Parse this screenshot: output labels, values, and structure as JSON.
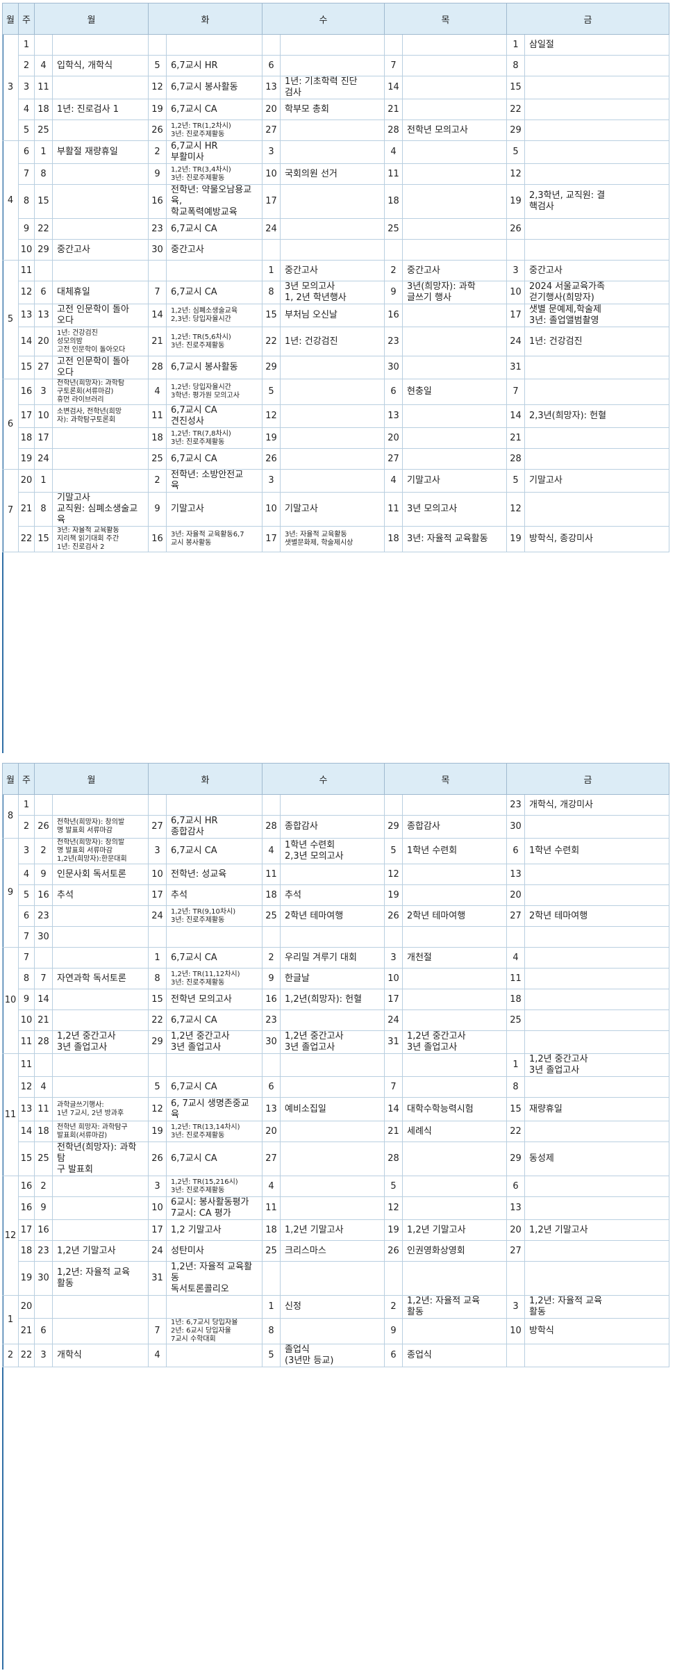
{
  "headers": [
    "월",
    "주",
    "월",
    "화",
    "수",
    "목",
    "금"
  ],
  "table1": [
    [
      "3",
      "1",
      "",
      "",
      "",
      "",
      "",
      "",
      "",
      "",
      "1",
      "삼일절"
    ],
    [
      "",
      "2",
      "4",
      "입학식, 개학식",
      "5",
      "6,7교시 HR",
      "6",
      "",
      "7",
      "",
      "8",
      ""
    ],
    [
      "",
      "3",
      "11",
      "",
      "12",
      "6,7교시 봉사활동",
      "13",
      "1년: 기초학력 진단\n검사",
      "14",
      "",
      "15",
      ""
    ],
    [
      "",
      "4",
      "18",
      "1년: 진로검사 1",
      "19",
      "6,7교시 CA",
      "20",
      "학부모 총회",
      "21",
      "",
      "22",
      ""
    ],
    [
      "",
      "5",
      "25",
      "",
      "26",
      "1,2년: TR(1,2차시)\n3년: 진로주제활동",
      "27",
      "",
      "28",
      "전학년 모의고사",
      "29",
      ""
    ],
    [
      "4",
      "6",
      "1",
      "부활절 재량휴일",
      "2",
      "6,7교시 HR\n부활미사",
      "3",
      "",
      "4",
      "",
      "5",
      ""
    ],
    [
      "",
      "7",
      "8",
      "",
      "9",
      "1,2년: TR(3,4차시)\n3년: 진로주제활동",
      "10",
      "국회의원 선거",
      "11",
      "",
      "12",
      ""
    ],
    [
      "",
      "8",
      "15",
      "",
      "16",
      "전학년: 약물오남용교육,\n학교폭력예방교육",
      "17",
      "",
      "18",
      "",
      "19",
      "2,3학년, 교직원: 결\n핵검사"
    ],
    [
      "",
      "9",
      "22",
      "",
      "23",
      "6,7교시 CA",
      "24",
      "",
      "25",
      "",
      "26",
      ""
    ],
    [
      "",
      "10",
      "29",
      "중간고사",
      "30",
      "중간고사",
      "",
      "",
      "",
      "",
      "",
      ""
    ],
    [
      "5",
      "11",
      "",
      "",
      "",
      "",
      "1",
      "중간고사",
      "2",
      "중간고사",
      "3",
      "중간고사"
    ],
    [
      "",
      "12",
      "6",
      "대체휴일",
      "7",
      "6,7교시 CA",
      "8",
      "3년 모의고사\n1, 2년 학년행사",
      "9",
      "3년(희망자):    과학\n글쓰기 행사",
      "10",
      "2024 서울교육가족\n걷기행사(희망자)"
    ],
    [
      "",
      "13",
      "13",
      "고전 인문학이 돌아\n오다",
      "14",
      "1,2년: 심폐소생술교육\n2,3년: 당입자율시간",
      "15",
      "부처님 오신날",
      "16",
      "",
      "17",
      "샛별 문예제,학술제\n3년: 졸업앨범촬영"
    ],
    [
      "",
      "14",
      "20",
      "1년: 건강검진\n성모의밤\n고전 인문학이 돌아오다",
      "21",
      "1,2년: TR(5,6차시)\n3년: 진로주제활동",
      "22",
      "1년: 건강검진",
      "23",
      "",
      "24",
      "1년: 건강검진"
    ],
    [
      "",
      "15",
      "27",
      "고전 인문학이 돌아\n오다",
      "28",
      "6,7교시 봉사활동",
      "29",
      "",
      "30",
      "",
      "31",
      ""
    ],
    [
      "6",
      "16",
      "3",
      "전학년(희망자):    과학탐\n구토론회(서류마감)\n휴먼 라이브러리",
      "4",
      "1,2년: 당입자율시간\n3학년: 평가원 모의고사",
      "5",
      "",
      "6",
      "현충일",
      "7",
      ""
    ],
    [
      "",
      "17",
      "10",
      "소변검사,    전학년(희망\n자): 과학탐구토론회",
      "11",
      "6,7교시 CA\n견진성사",
      "12",
      "",
      "13",
      "",
      "14",
      "2,3년(희망자): 헌혈"
    ],
    [
      "",
      "18",
      "17",
      "",
      "18",
      "1,2년: TR(7,8차시)\n3년: 진로주제활동",
      "19",
      "",
      "20",
      "",
      "21",
      ""
    ],
    [
      "",
      "19",
      "24",
      "",
      "25",
      "6,7교시 CA",
      "26",
      "",
      "27",
      "",
      "28",
      ""
    ],
    [
      "7",
      "20",
      "1",
      "",
      "2",
      "전학년:    소방안전교\n육",
      "3",
      "",
      "4",
      "기말고사",
      "5",
      "기말고사"
    ],
    [
      "",
      "21",
      "8",
      "기말고사\n교직원: 심폐소생술교육",
      "9",
      "기말고사",
      "10",
      "기말고사",
      "11",
      "3년 모의고사",
      "12",
      ""
    ],
    [
      "",
      "22",
      "15",
      "3년: 자율적 교육활동\n지리책 읽기대회 주간\n1년: 진로검사 2",
      "16",
      "3년: 자율적 교육활동6,7\n교시 봉사활동",
      "17",
      "3년: 자율적 교육활동\n샛별문화제, 학술제시상",
      "18",
      "3년: 자율적 교육활동",
      "19",
      "방학식, 종강미사"
    ]
  ],
  "table2": [
    [
      "8",
      "1",
      "",
      "",
      "",
      "",
      "",
      "",
      "",
      "",
      "23",
      "개학식, 개강미사"
    ],
    [
      "",
      "2",
      "26",
      "전학년(희망자):    창의발\n명 발표회 서류마감",
      "27",
      "6,7교시 HR\n종합감사",
      "28",
      "종합감사",
      "29",
      "종합감사",
      "30",
      ""
    ],
    [
      "9",
      "3",
      "2",
      "전학년(희망자):    창의발\n명 발표회 서류마감\n1,2년(희망자):한문대회",
      "3",
      "6,7교시 CA",
      "4",
      "1학년 수련회\n2,3년 모의고사",
      "5",
      "1학년 수련회",
      "6",
      "1학년 수련회"
    ],
    [
      "",
      "4",
      "9",
      "인문사회 독서토론",
      "10",
      "전학년: 성교육",
      "11",
      "",
      "12",
      "",
      "13",
      ""
    ],
    [
      "",
      "5",
      "16",
      "추석",
      "17",
      "추석",
      "18",
      "추석",
      "19",
      "",
      "20",
      ""
    ],
    [
      "",
      "6",
      "23",
      "",
      "24",
      "1,2년: TR(9,10차시)\n3년: 진로주제활동",
      "25",
      "2학년 테마여행",
      "26",
      "2학년 테마여행",
      "27",
      "2학년 테마여행"
    ],
    [
      "",
      "7",
      "30",
      "",
      "",
      "",
      "",
      "",
      "",
      "",
      "",
      ""
    ],
    [
      "10",
      "7",
      "",
      "",
      "1",
      "6,7교시 CA",
      "2",
      "우리밀 겨루기 대회",
      "3",
      "개천절",
      "4",
      ""
    ],
    [
      "",
      "8",
      "7",
      "자연과학 독서토론",
      "8",
      "1,2년: TR(11,12차시)\n3년: 진로주제활동",
      "9",
      "한글날",
      "10",
      "",
      "11",
      ""
    ],
    [
      "",
      "9",
      "14",
      "",
      "15",
      "전학년 모의고사",
      "16",
      "1,2년(희망자): 헌혈",
      "17",
      "",
      "18",
      ""
    ],
    [
      "",
      "10",
      "21",
      "",
      "22",
      "6,7교시 CA",
      "23",
      "",
      "24",
      "",
      "25",
      ""
    ],
    [
      "",
      "11",
      "28",
      "1,2년 중간고사\n3년 졸업고사",
      "29",
      "1,2년 중간고사\n3년 졸업고사",
      "30",
      "1,2년 중간고사\n3년 졸업고사",
      "31",
      "1,2년 중간고사\n3년 졸업고사",
      "",
      ""
    ],
    [
      "11",
      "11",
      "",
      "",
      "",
      "",
      "",
      "",
      "",
      "",
      "1",
      "1,2년 중간고사\n3년 졸업고사"
    ],
    [
      "",
      "12",
      "4",
      "",
      "5",
      "6,7교시 CA",
      "6",
      "",
      "7",
      "",
      "8",
      ""
    ],
    [
      "",
      "13",
      "11",
      "과학글쓰기행사:\n1년 7교시, 2년 방과후",
      "12",
      "6,  7교시  생명존중교\n육",
      "13",
      "예비소집일",
      "14",
      "대학수학능력시험",
      "15",
      "재량휴일"
    ],
    [
      "",
      "14",
      "18",
      "전학년 희망자:  과학탐구\n발표회(서류마감)",
      "19",
      "1,2년: TR(13,14차시)\n3년: 진로주제활동",
      "20",
      "",
      "21",
      "세례식",
      "22",
      ""
    ],
    [
      "",
      "15",
      "25",
      "전학년(희망자):    과학탐\n구 발표회",
      "26",
      "6,7교시 CA",
      "27",
      "",
      "28",
      "",
      "29",
      "동성제"
    ],
    [
      "12",
      "16",
      "2",
      "",
      "3",
      "1,2년: TR(15,216시)\n3년: 진로주제활동",
      "4",
      "",
      "5",
      "",
      "6",
      ""
    ],
    [
      "",
      "16",
      "9",
      "",
      "10",
      "6교시: 봉사활동평가\n7교시: CA 평가",
      "11",
      "",
      "12",
      "",
      "13",
      ""
    ],
    [
      "",
      "17",
      "16",
      "",
      "17",
      "1,2 기말고사",
      "18",
      "1,2년 기말고사",
      "19",
      "1,2년 기말고사",
      "20",
      "1,2년 기말고사"
    ],
    [
      "",
      "18",
      "23",
      "1,2년 기말고사",
      "24",
      "성탄미사",
      "25",
      "크리스마스",
      "26",
      "인권영화상영회",
      "27",
      ""
    ],
    [
      "",
      "19",
      "30",
      "1,2년:  자율적  교육\n활동",
      "31",
      "1,2년: 자율적 교육활동\n독서토론콜리오",
      "",
      "",
      "",
      "",
      "",
      ""
    ],
    [
      "1",
      "20",
      "",
      "",
      "",
      "",
      "1",
      "신정",
      "2",
      "1,2년:  자율적  교육\n활동",
      "3",
      "1,2년:  자율적  교육\n활동"
    ],
    [
      "",
      "21",
      "6",
      "",
      "7",
      "1년: 6,7교시 당입자율\n2년: 6교시 당입자율\n7교시 수학대회",
      "8",
      "",
      "9",
      "",
      "10",
      "방학식"
    ],
    [
      "2",
      "22",
      "3",
      "개학식",
      "4",
      "",
      "5",
      "졸업식\n(3년만 등교)",
      "6",
      "종업식",
      "",
      ""
    ]
  ]
}
